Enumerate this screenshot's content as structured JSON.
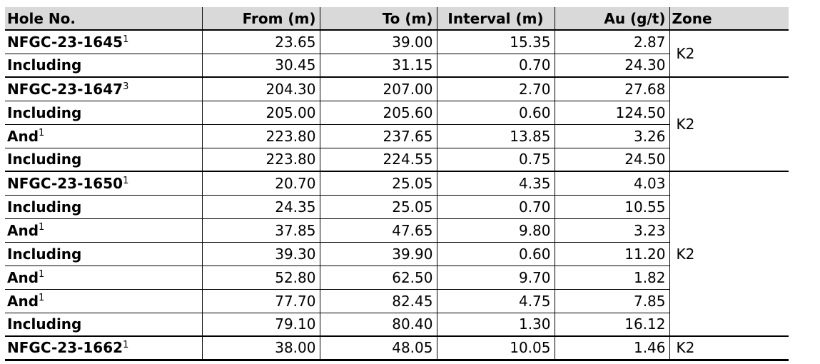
{
  "table": {
    "columns": {
      "hole": "Hole No.",
      "from": "From (m)",
      "to": "To (m)",
      "interval": "Interval (m)",
      "au": "Au (g/t)",
      "zone": "Zone"
    },
    "groups": [
      {
        "zone": "K2",
        "rows": [
          {
            "hole": "NFGC-23-1645",
            "sup": "1",
            "from": "23.65",
            "to": "39.00",
            "interval": "15.35",
            "au": "2.87"
          },
          {
            "hole": "Including",
            "sup": "",
            "from": "30.45",
            "to": "31.15",
            "interval": "0.70",
            "au": "24.30"
          }
        ]
      },
      {
        "zone": "K2",
        "rows": [
          {
            "hole": "NFGC-23-1647",
            "sup": "3",
            "from": "204.30",
            "to": "207.00",
            "interval": "2.70",
            "au": "27.68"
          },
          {
            "hole": "Including",
            "sup": "",
            "from": "205.00",
            "to": "205.60",
            "interval": "0.60",
            "au": "124.50"
          },
          {
            "hole": "And",
            "sup": "1",
            "from": "223.80",
            "to": "237.65",
            "interval": "13.85",
            "au": "3.26"
          },
          {
            "hole": "Including",
            "sup": "",
            "from": "223.80",
            "to": "224.55",
            "interval": "0.75",
            "au": "24.50"
          }
        ]
      },
      {
        "zone": "K2",
        "rows": [
          {
            "hole": "NFGC-23-1650",
            "sup": "1",
            "from": "20.70",
            "to": "25.05",
            "interval": "4.35",
            "au": "4.03"
          },
          {
            "hole": "Including",
            "sup": "",
            "from": "24.35",
            "to": "25.05",
            "interval": "0.70",
            "au": "10.55"
          },
          {
            "hole": "And",
            "sup": "1",
            "from": "37.85",
            "to": "47.65",
            "interval": "9.80",
            "au": "3.23"
          },
          {
            "hole": "Including",
            "sup": "",
            "from": "39.30",
            "to": "39.90",
            "interval": "0.60",
            "au": "11.20"
          },
          {
            "hole": "And",
            "sup": "1",
            "from": "52.80",
            "to": "62.50",
            "interval": "9.70",
            "au": "1.82"
          },
          {
            "hole": "And",
            "sup": "1",
            "from": "77.70",
            "to": "82.45",
            "interval": "4.75",
            "au": "7.85"
          },
          {
            "hole": "Including",
            "sup": "",
            "from": "79.10",
            "to": "80.40",
            "interval": "1.30",
            "au": "16.12"
          }
        ]
      },
      {
        "zone": "K2",
        "rows": [
          {
            "hole": "NFGC-23-1662",
            "sup": "1",
            "from": "38.00",
            "to": "48.05",
            "interval": "10.05",
            "au": "1.46"
          }
        ]
      }
    ]
  },
  "colors": {
    "header_bg": "#d9d9d9",
    "border": "#000000",
    "text": "#000000"
  }
}
